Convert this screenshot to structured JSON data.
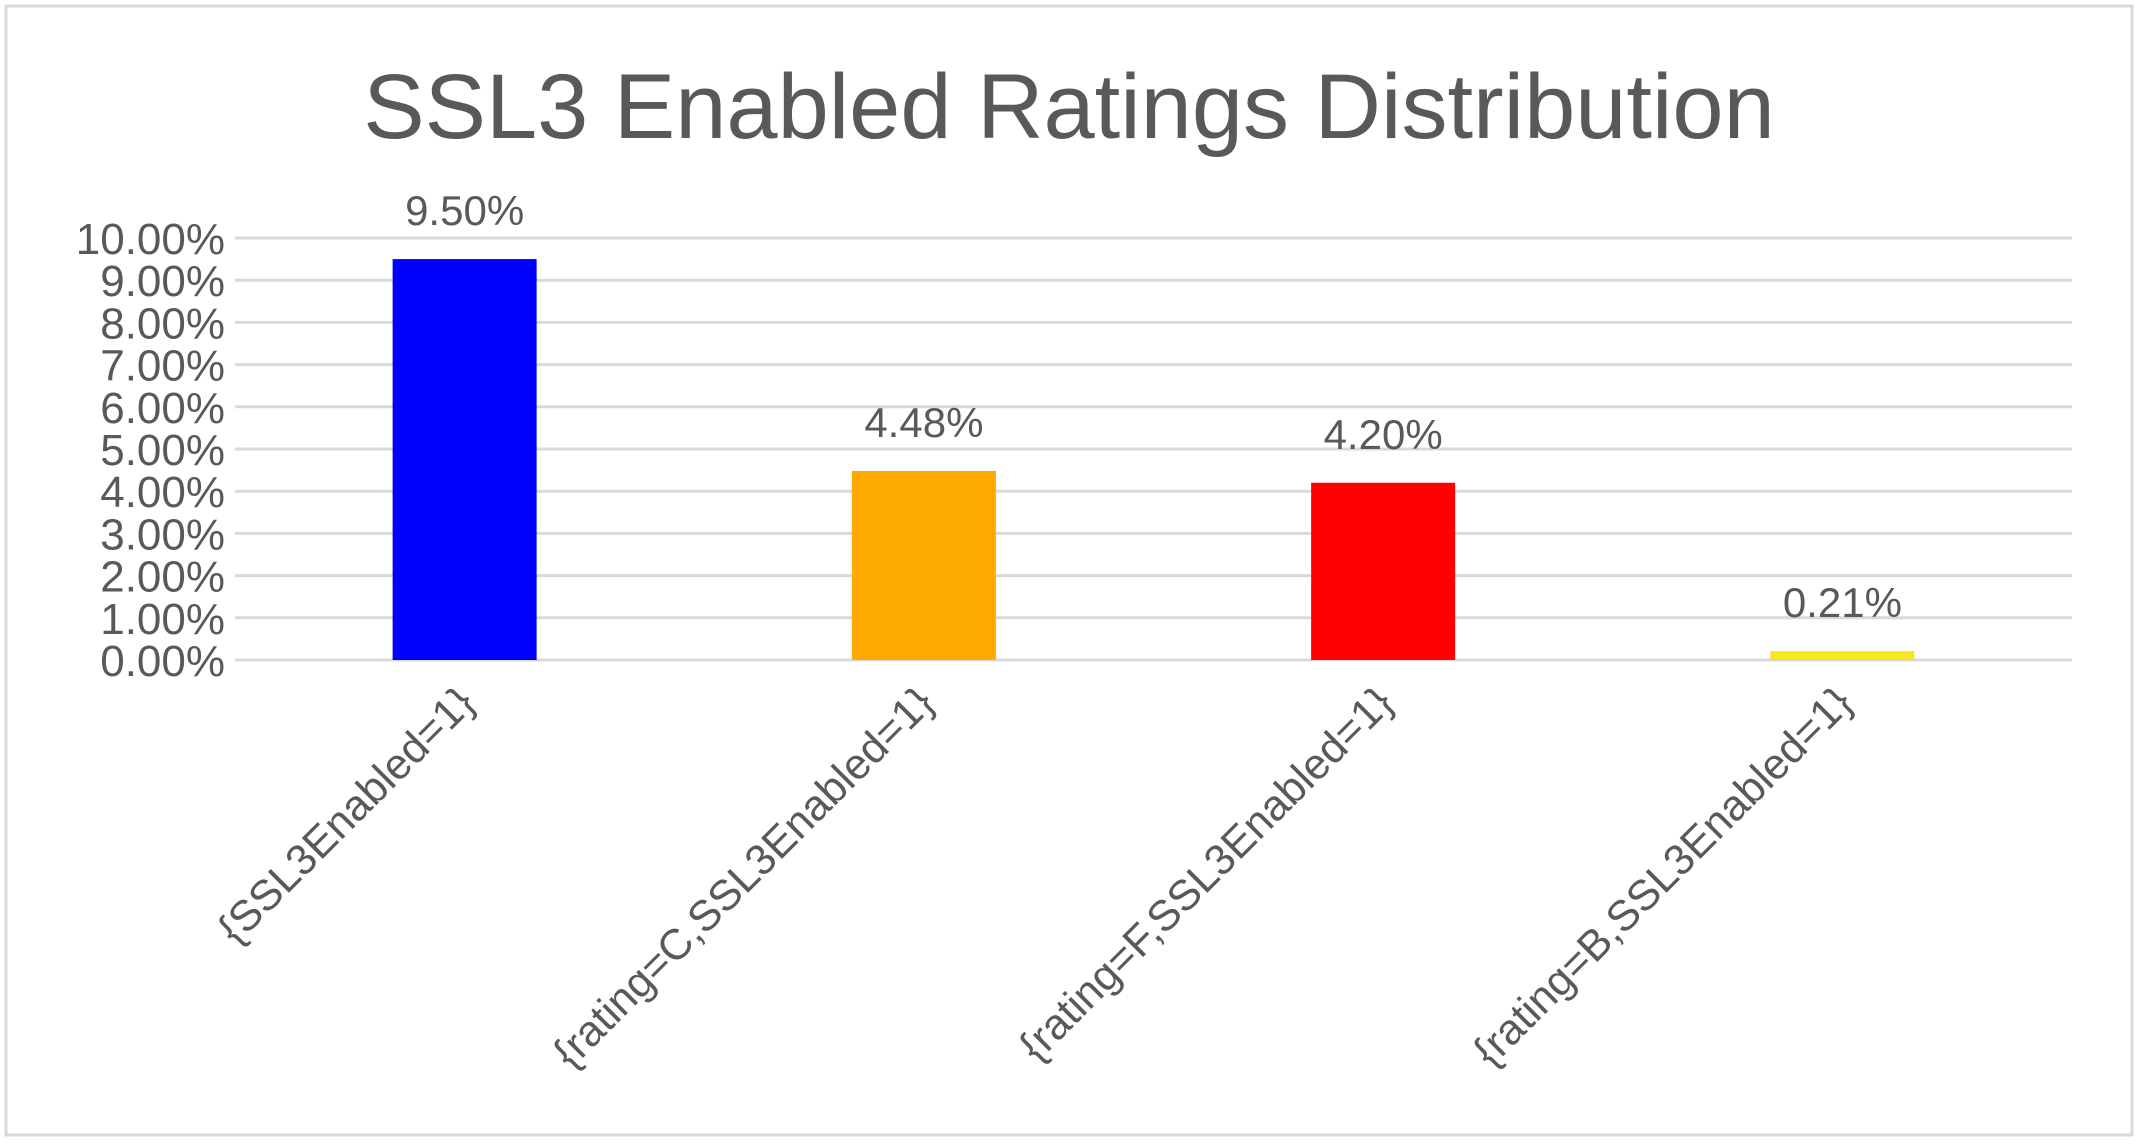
{
  "chart_data": {
    "type": "bar",
    "title": "SSL3 Enabled Ratings Distribution",
    "xlabel": "",
    "ylabel": "",
    "categories": [
      "{SSL3Enabled=1}",
      "{rating=C,SSL3Enabled=1}",
      "{rating=F,SSL3Enabled=1}",
      "{rating=B,SSL3Enabled=1}"
    ],
    "values": [
      9.5,
      4.48,
      4.2,
      0.21
    ],
    "data_labels": [
      "9.50%",
      "4.48%",
      "4.20%",
      "0.21%"
    ],
    "bar_colors": [
      "#0000FF",
      "#FFAA00",
      "#FF0000",
      "#F5E61E"
    ],
    "ylim": [
      0,
      10
    ],
    "yticks": [
      0,
      1,
      2,
      3,
      4,
      5,
      6,
      7,
      8,
      9,
      10
    ],
    "ytick_labels": [
      "0.00%",
      "1.00%",
      "2.00%",
      "3.00%",
      "4.00%",
      "5.00%",
      "6.00%",
      "7.00%",
      "8.00%",
      "9.00%",
      "10.00%"
    ],
    "grid": true,
    "legend": "none"
  }
}
